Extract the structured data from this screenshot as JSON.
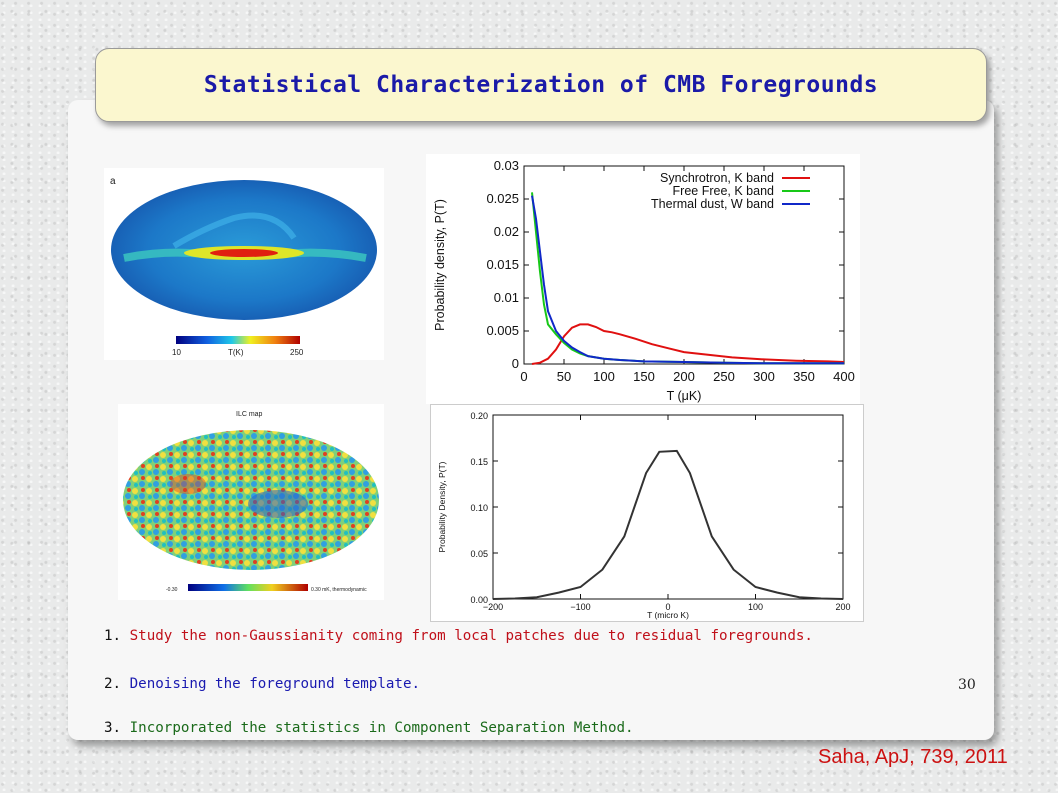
{
  "title": "Statistical Characterization of CMB Foregrounds",
  "map_top": {
    "panel_label": "a",
    "colorbar_min": "10",
    "colorbar_unit": "T(K)",
    "colorbar_max": "250"
  },
  "map_bottom": {
    "map_title": "ILC map",
    "colorbar_min": "-0.30",
    "colorbar_max": "0.30 mK, thermodynamic"
  },
  "bullets": [
    {
      "num": "1. ",
      "text": "Study the non-Gaussianity coming from local patches due to residual foregrounds.",
      "color": "#c0101a"
    },
    {
      "num": "2. ",
      "text": "Denoising the foreground template.",
      "color": "#1a1ab0"
    },
    {
      "num": "3. ",
      "text": "Incorporated the statistics in Component Separation Method.",
      "color": "#1a6a1a"
    }
  ],
  "slide_number": "30",
  "citation": "Saha, ApJ, 739, 2011",
  "chart_data": [
    {
      "type": "line",
      "xlabel": "T (μK)",
      "ylabel": "Probability density, P(T)",
      "xlim": [
        0,
        400
      ],
      "ylim": [
        0,
        0.03
      ],
      "xticks": [
        "0",
        "50",
        "100",
        "150",
        "200",
        "250",
        "300",
        "350",
        "400"
      ],
      "yticks": [
        "0",
        "0.005",
        "0.01",
        "0.015",
        "0.02",
        "0.025",
        "0.03"
      ],
      "legend": "top-right",
      "series": [
        {
          "name": "Synchrotron, K band",
          "color": "#e01010",
          "x": [
            10,
            20,
            30,
            40,
            50,
            60,
            70,
            80,
            90,
            100,
            110,
            120,
            140,
            160,
            180,
            200,
            230,
            260,
            300,
            340,
            380,
            400
          ],
          "y": [
            0.0,
            0.0002,
            0.0008,
            0.0022,
            0.0042,
            0.0055,
            0.006,
            0.006,
            0.0056,
            0.005,
            0.0048,
            0.0045,
            0.0038,
            0.003,
            0.0024,
            0.0018,
            0.0014,
            0.001,
            0.0007,
            0.0005,
            0.0004,
            0.0003
          ]
        },
        {
          "name": "Free Free, K band",
          "color": "#18c818",
          "x": [
            10,
            15,
            20,
            25,
            30,
            40,
            50,
            60,
            70,
            80,
            100,
            120,
            150,
            200,
            250,
            300,
            400
          ],
          "y": [
            0.026,
            0.02,
            0.014,
            0.009,
            0.006,
            0.0045,
            0.0032,
            0.0022,
            0.0016,
            0.0012,
            0.0008,
            0.0006,
            0.0004,
            0.0003,
            0.0002,
            0.0001,
            0.0001
          ]
        },
        {
          "name": "Thermal dust, W band",
          "color": "#1028c8",
          "x": [
            10,
            15,
            20,
            25,
            30,
            35,
            40,
            50,
            60,
            70,
            80,
            100,
            120,
            150,
            200,
            250,
            300,
            400
          ],
          "y": [
            0.0255,
            0.022,
            0.017,
            0.012,
            0.008,
            0.0065,
            0.005,
            0.0035,
            0.0025,
            0.0018,
            0.0012,
            0.0008,
            0.0006,
            0.0004,
            0.0003,
            0.0002,
            0.0001,
            0.0001
          ]
        }
      ]
    },
    {
      "type": "line",
      "xlabel": "T (micro K)",
      "ylabel": "Probability Density, P(T)",
      "xlim": [
        -200,
        200
      ],
      "ylim": [
        0,
        0.2
      ],
      "xticks": [
        "−200",
        "−100",
        "0",
        "100",
        "200"
      ],
      "yticks": [
        "0.00",
        "0.05",
        "0.10",
        "0.15",
        "0.20"
      ],
      "series": [
        {
          "color": "#333333",
          "x": [
            -200,
            -175,
            -150,
            -125,
            -100,
            -75,
            -50,
            -25,
            -10,
            10,
            25,
            50,
            75,
            100,
            125,
            150,
            175,
            200
          ],
          "y": [
            0.0,
            0.0005,
            0.002,
            0.007,
            0.013,
            0.032,
            0.068,
            0.137,
            0.16,
            0.161,
            0.137,
            0.068,
            0.032,
            0.013,
            0.007,
            0.002,
            0.0005,
            0.0
          ]
        }
      ]
    }
  ]
}
